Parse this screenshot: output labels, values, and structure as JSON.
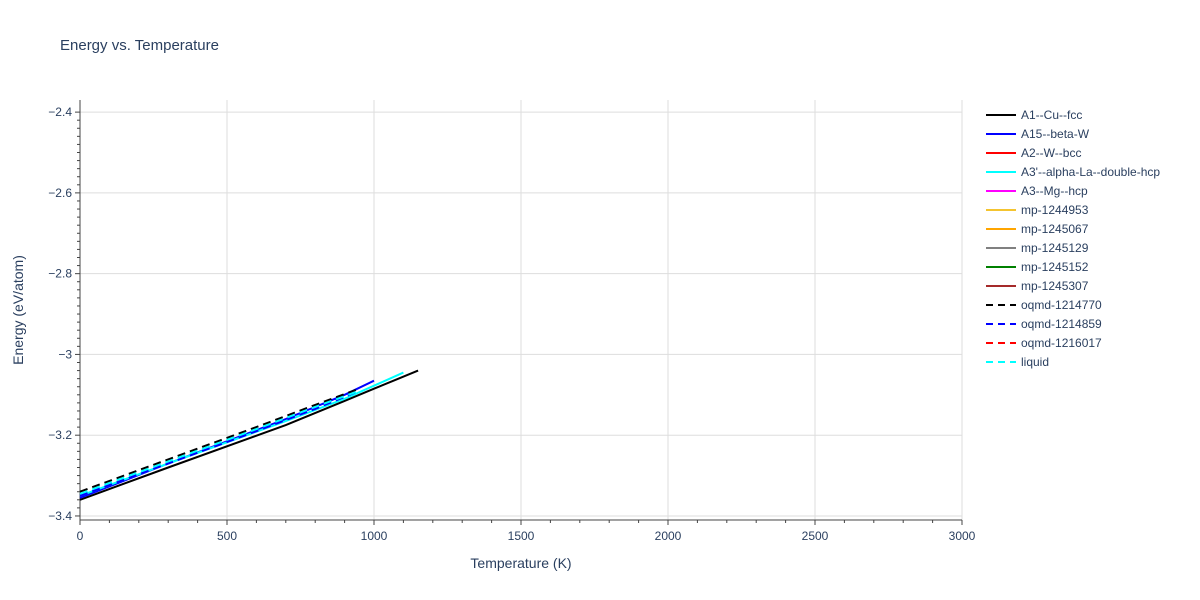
{
  "chart_data": {
    "type": "line",
    "title": "Energy vs. Temperature",
    "xlabel": "Temperature (K)",
    "ylabel": "Energy (eV/atom)",
    "xlim": [
      0,
      3000
    ],
    "ylim": [
      -3.41,
      -2.37
    ],
    "xticks": [
      0,
      500,
      1000,
      1500,
      2000,
      2500,
      3000
    ],
    "xtick_labels": [
      "0",
      "500",
      "1000",
      "1500",
      "2000",
      "2500",
      "3000"
    ],
    "yticks": [
      -3.4,
      -3.2,
      -3.0,
      -2.8,
      -2.6,
      -2.4
    ],
    "ytick_labels": [
      "−3.4",
      "−3.2",
      "−3",
      "−2.8",
      "−2.6",
      "−2.4"
    ],
    "grid": true,
    "legend_position": "right",
    "series": [
      {
        "name": "A1--Cu--fcc",
        "color": "#000000",
        "dash": "solid",
        "x": [
          0,
          300,
          700,
          900,
          1000,
          1150
        ],
        "y": [
          -3.36,
          -3.28,
          -3.175,
          -3.115,
          -3.085,
          -3.04
        ]
      },
      {
        "name": "A15--beta-W",
        "color": "#0000ff",
        "dash": "solid",
        "x": [
          0,
          300,
          700,
          900,
          1000
        ],
        "y": [
          -3.355,
          -3.27,
          -3.16,
          -3.1,
          -3.065
        ]
      },
      {
        "name": "A2--W--bcc",
        "color": "#ff0000",
        "dash": "solid",
        "x": [],
        "y": []
      },
      {
        "name": "A3'--alpha-La--double-hcp",
        "color": "#00ffff",
        "dash": "solid",
        "x": [
          0,
          300,
          700,
          900,
          1100
        ],
        "y": [
          -3.35,
          -3.27,
          -3.165,
          -3.11,
          -3.045
        ]
      },
      {
        "name": "A3--Mg--hcp",
        "color": "#ff00ff",
        "dash": "solid",
        "x": [],
        "y": []
      },
      {
        "name": "mp-1244953",
        "color": "#f4c430",
        "dash": "solid",
        "x": [],
        "y": []
      },
      {
        "name": "mp-1245067",
        "color": "#ffa500",
        "dash": "solid",
        "x": [],
        "y": []
      },
      {
        "name": "mp-1245129",
        "color": "#808080",
        "dash": "solid",
        "x": [],
        "y": []
      },
      {
        "name": "mp-1245152",
        "color": "#008000",
        "dash": "solid",
        "x": [],
        "y": []
      },
      {
        "name": "mp-1245307",
        "color": "#a52a2a",
        "dash": "solid",
        "x": [],
        "y": []
      },
      {
        "name": "oqmd-1214770",
        "color": "#000000",
        "dash": "dash",
        "x": [
          0,
          300,
          600,
          800,
          950
        ],
        "y": [
          -3.34,
          -3.26,
          -3.18,
          -3.125,
          -3.085
        ]
      },
      {
        "name": "oqmd-1214859",
        "color": "#0000ff",
        "dash": "dash",
        "x": [
          0,
          300,
          600,
          800,
          950
        ],
        "y": [
          -3.35,
          -3.27,
          -3.19,
          -3.135,
          -3.09
        ]
      },
      {
        "name": "oqmd-1216017",
        "color": "#ff0000",
        "dash": "dash",
        "x": [],
        "y": []
      },
      {
        "name": "liquid",
        "color": "#00ffff",
        "dash": "dash",
        "x": [
          0,
          300,
          600,
          800,
          950
        ],
        "y": [
          -3.345,
          -3.265,
          -3.185,
          -3.13,
          -3.09
        ]
      }
    ]
  }
}
